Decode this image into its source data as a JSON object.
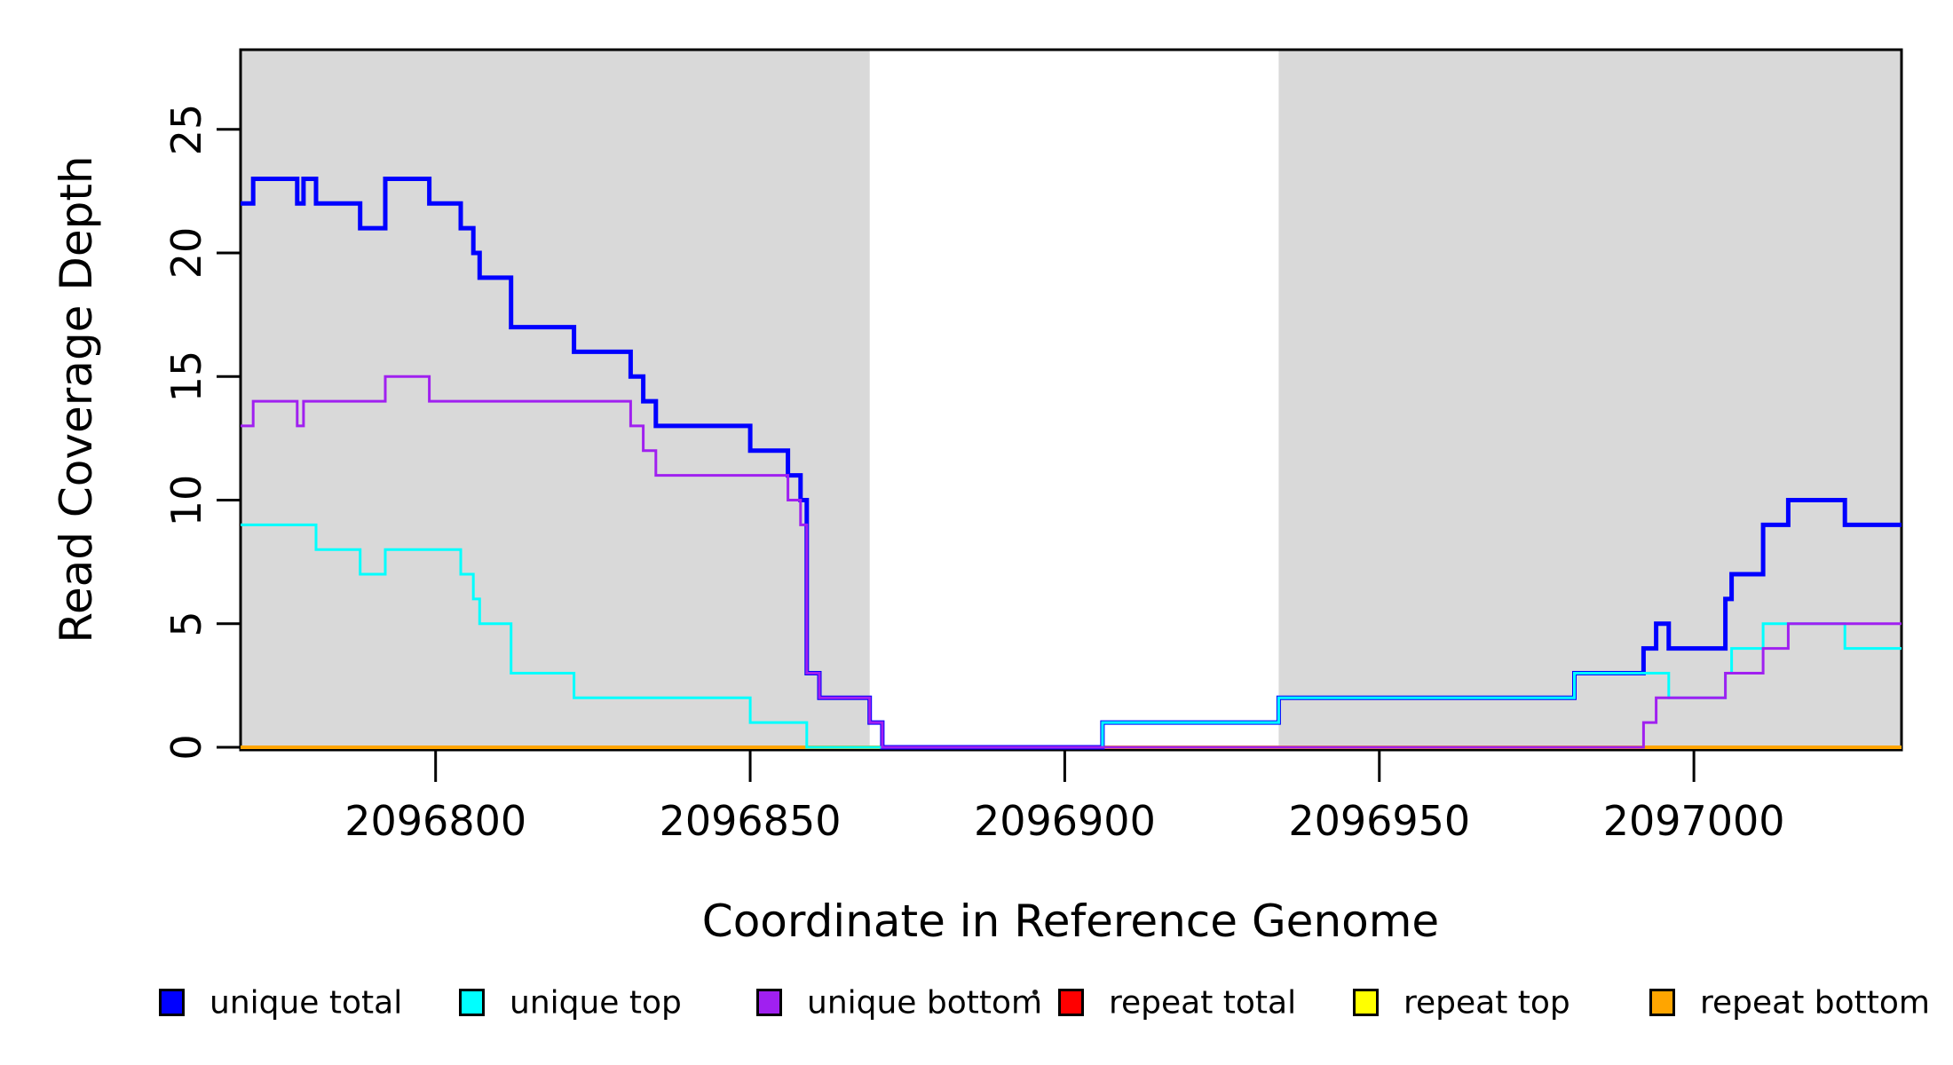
{
  "chart_data": {
    "type": "line",
    "subtype": "step",
    "title": "",
    "xlabel": "Coordinate in Reference Genome",
    "ylabel": "Read Coverage Depth",
    "xlim": [
      2096769,
      2097033
    ],
    "ylim": [
      0,
      28.2
    ],
    "grid": false,
    "x_ticks": [
      2096800,
      2096850,
      2096900,
      2096950,
      2097000
    ],
    "x_tick_labels": [
      "2096800",
      "2096850",
      "2096900",
      "2096950",
      "2097000"
    ],
    "y_ticks": [
      0,
      5,
      10,
      15,
      20,
      25
    ],
    "y_tick_labels": [
      "0",
      "5",
      "10",
      "15",
      "20",
      "25"
    ],
    "shade_color": "#D9D9D9",
    "shaded_regions": [
      [
        2096769,
        2096869
      ],
      [
        2096934,
        2097033
      ]
    ],
    "series": [
      {
        "name": "unique total",
        "color": "#0000FF",
        "width": 5,
        "steps": [
          [
            2096769,
            22
          ],
          [
            2096771,
            23
          ],
          [
            2096778,
            22
          ],
          [
            2096779,
            23
          ],
          [
            2096781,
            22
          ],
          [
            2096788,
            21
          ],
          [
            2096792,
            23
          ],
          [
            2096799,
            22
          ],
          [
            2096804,
            21
          ],
          [
            2096806,
            20
          ],
          [
            2096807,
            19
          ],
          [
            2096812,
            17
          ],
          [
            2096822,
            16
          ],
          [
            2096831,
            15
          ],
          [
            2096833,
            14
          ],
          [
            2096835,
            13
          ],
          [
            2096850,
            12
          ],
          [
            2096856,
            11
          ],
          [
            2096858,
            10
          ],
          [
            2096859,
            3
          ],
          [
            2096861,
            2
          ],
          [
            2096869,
            1
          ],
          [
            2096871,
            0
          ],
          [
            2096906,
            1
          ],
          [
            2096934,
            2
          ],
          [
            2096981,
            3
          ],
          [
            2096992,
            4
          ],
          [
            2096994,
            5
          ],
          [
            2096996,
            4
          ],
          [
            2097005,
            6
          ],
          [
            2097006,
            7
          ],
          [
            2097011,
            9
          ],
          [
            2097015,
            10
          ],
          [
            2097024,
            9
          ]
        ]
      },
      {
        "name": "unique top",
        "color": "#00FFFF",
        "width": 3,
        "steps": [
          [
            2096769,
            9
          ],
          [
            2096781,
            8
          ],
          [
            2096788,
            7
          ],
          [
            2096792,
            8
          ],
          [
            2096804,
            7
          ],
          [
            2096806,
            6
          ],
          [
            2096807,
            5
          ],
          [
            2096812,
            3
          ],
          [
            2096822,
            2
          ],
          [
            2096850,
            1
          ],
          [
            2096859,
            0
          ],
          [
            2096906,
            1
          ],
          [
            2096934,
            2
          ],
          [
            2096981,
            3
          ],
          [
            2096996,
            2
          ],
          [
            2097005,
            3
          ],
          [
            2097006,
            4
          ],
          [
            2097011,
            5
          ],
          [
            2097024,
            4
          ]
        ]
      },
      {
        "name": "unique bottom",
        "color": "#A020F0",
        "width": 3,
        "steps": [
          [
            2096769,
            13
          ],
          [
            2096771,
            14
          ],
          [
            2096778,
            13
          ],
          [
            2096779,
            14
          ],
          [
            2096792,
            15
          ],
          [
            2096799,
            14
          ],
          [
            2096831,
            13
          ],
          [
            2096833,
            12
          ],
          [
            2096835,
            11
          ],
          [
            2096856,
            10
          ],
          [
            2096858,
            9
          ],
          [
            2096859,
            3
          ],
          [
            2096861,
            2
          ],
          [
            2096869,
            1
          ],
          [
            2096871,
            0
          ],
          [
            2096992,
            1
          ],
          [
            2096994,
            2
          ],
          [
            2097005,
            3
          ],
          [
            2097011,
            4
          ],
          [
            2097015,
            5
          ]
        ]
      },
      {
        "name": "repeat total",
        "color": "#FF0000",
        "width": 3,
        "steps": [
          [
            2096769,
            0
          ]
        ]
      },
      {
        "name": "repeat top",
        "color": "#FFFF00",
        "width": 3,
        "steps": [
          [
            2096769,
            0
          ]
        ]
      },
      {
        "name": "repeat bottom",
        "color": "#FFA500",
        "width": 4,
        "steps": [
          [
            2096769,
            0
          ]
        ]
      }
    ],
    "legend": {
      "position": "bottom",
      "items": [
        {
          "label": "unique total",
          "color": "#0000FF"
        },
        {
          "label": "unique top",
          "color": "#00FFFF"
        },
        {
          "label": "unique bottom",
          "color": "#A020F0"
        },
        {
          "label": "repeat total",
          "color": "#FF0000"
        },
        {
          "label": "repeat top",
          "color": "#FFFF00"
        },
        {
          "label": "repeat bottom",
          "color": "#FFA500"
        }
      ]
    }
  }
}
